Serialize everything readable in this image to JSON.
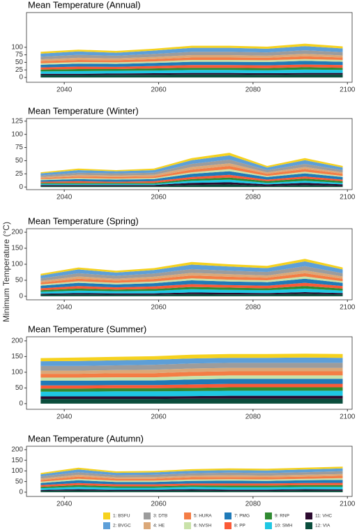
{
  "chart_data": [
    {
      "type": "area",
      "title": "Mean Temperature (Annual)",
      "x": [
        2035,
        2043,
        2051,
        2059,
        2067,
        2075,
        2083,
        2091,
        2099
      ],
      "xlim": [
        2032,
        2101
      ],
      "xticks": [
        2040,
        2060,
        2080,
        2100
      ],
      "ylim": [
        -16,
        215
      ],
      "yticks": [
        0,
        25,
        50,
        75,
        100
      ],
      "series": [
        {
          "name": "1: BSFU",
          "color": "#f6d21e",
          "values": [
            6,
            6,
            6,
            6,
            7,
            7,
            7,
            8,
            7
          ]
        },
        {
          "name": "2: BVGC",
          "color": "#5d9fd8",
          "values": [
            10,
            11,
            10,
            11,
            13,
            13,
            12,
            14,
            12
          ]
        },
        {
          "name": "3: DTB",
          "color": "#9c9c9c",
          "values": [
            9,
            10,
            9,
            10,
            11,
            11,
            11,
            12,
            11
          ]
        },
        {
          "name": "4: HE",
          "color": "#dba878",
          "values": [
            6,
            7,
            6,
            7,
            8,
            8,
            7,
            8,
            7
          ]
        },
        {
          "name": "5: HURA",
          "color": "#f47d45",
          "values": [
            7,
            7,
            7,
            8,
            8,
            8,
            8,
            9,
            8
          ]
        },
        {
          "name": "6: NVSH",
          "color": "#c9e2a9",
          "values": [
            5,
            5,
            5,
            5,
            6,
            6,
            6,
            6,
            6
          ]
        },
        {
          "name": "7: PMG",
          "color": "#1f7ab8",
          "values": [
            9,
            10,
            10,
            10,
            11,
            11,
            11,
            12,
            11
          ]
        },
        {
          "name": "8: PP",
          "color": "#fb5a37",
          "values": [
            7,
            8,
            7,
            8,
            9,
            9,
            9,
            9,
            9
          ]
        },
        {
          "name": "9: RNP",
          "color": "#2f8a31",
          "values": [
            6,
            7,
            6,
            7,
            7,
            7,
            7,
            8,
            7
          ]
        },
        {
          "name": "10: SMH",
          "color": "#1ec7e3",
          "values": [
            8,
            9,
            9,
            9,
            10,
            10,
            10,
            11,
            10
          ]
        },
        {
          "name": "11: VHC",
          "color": "#2b0a2f",
          "values": [
            4,
            4,
            4,
            5,
            5,
            5,
            5,
            5,
            5
          ]
        },
        {
          "name": "12: VIA",
          "color": "#0a4d3c",
          "values": [
            8,
            8,
            9,
            9,
            10,
            10,
            9,
            10,
            10
          ]
        }
      ]
    },
    {
      "type": "area",
      "title": "Mean Temperature (Winter)",
      "x": [
        2035,
        2043,
        2051,
        2059,
        2067,
        2075,
        2083,
        2091,
        2099
      ],
      "xlim": [
        2032,
        2101
      ],
      "xticks": [
        2040,
        2060,
        2080,
        2100
      ],
      "ylim": [
        -5,
        130
      ],
      "yticks": [
        0,
        25,
        50,
        75,
        100,
        125
      ],
      "series": [
        {
          "name": "1: BSFU",
          "color": "#f6d21e",
          "values": [
            2,
            3,
            2,
            3,
            4,
            5,
            3,
            4,
            3
          ]
        },
        {
          "name": "2: BVGC",
          "color": "#5d9fd8",
          "values": [
            4,
            5,
            4,
            5,
            7,
            8,
            5,
            7,
            5
          ]
        },
        {
          "name": "3: DTB",
          "color": "#9c9c9c",
          "values": [
            3,
            4,
            4,
            4,
            6,
            7,
            4,
            6,
            4
          ]
        },
        {
          "name": "4: HE",
          "color": "#dba878",
          "values": [
            2,
            3,
            3,
            3,
            5,
            5,
            3,
            4,
            3
          ]
        },
        {
          "name": "5: HURA",
          "color": "#f47d45",
          "values": [
            2,
            3,
            3,
            3,
            5,
            6,
            4,
            5,
            4
          ]
        },
        {
          "name": "6: NVSH",
          "color": "#c9e2a9",
          "values": [
            2,
            2,
            2,
            2,
            3,
            4,
            2,
            3,
            2
          ]
        },
        {
          "name": "7: PMG",
          "color": "#1f7ab8",
          "values": [
            3,
            4,
            4,
            4,
            6,
            7,
            5,
            6,
            5
          ]
        },
        {
          "name": "8: PP",
          "color": "#fb5a37",
          "values": [
            2,
            3,
            2,
            3,
            4,
            5,
            3,
            4,
            3
          ]
        },
        {
          "name": "9: RNP",
          "color": "#2f8a31",
          "values": [
            2,
            2,
            2,
            2,
            3,
            4,
            3,
            4,
            3
          ]
        },
        {
          "name": "10: SMH",
          "color": "#1ec7e3",
          "values": [
            2,
            2,
            2,
            2,
            4,
            5,
            3,
            4,
            3
          ]
        },
        {
          "name": "11: VHC",
          "color": "#2b0a2f",
          "values": [
            2,
            2,
            2,
            2,
            4,
            4,
            3,
            4,
            3
          ]
        },
        {
          "name": "12: VIA",
          "color": "#0a4d3c",
          "values": [
            2,
            2,
            2,
            2,
            4,
            5,
            2,
            4,
            2
          ]
        }
      ]
    },
    {
      "type": "area",
      "title": "Mean Temperature (Spring)",
      "ylabel": "Minimum Temperature (°C)",
      "x": [
        2035,
        2043,
        2051,
        2059,
        2067,
        2075,
        2083,
        2091,
        2099
      ],
      "xlim": [
        2032,
        2101
      ],
      "xticks": [
        2040,
        2060,
        2080,
        2100
      ],
      "ylim": [
        -11,
        211
      ],
      "yticks": [
        0,
        50,
        100,
        150,
        200
      ],
      "series": [
        {
          "name": "1: BSFU",
          "color": "#f6d21e",
          "values": [
            5,
            6,
            6,
            6,
            8,
            7,
            7,
            8,
            6
          ]
        },
        {
          "name": "2: BVGC",
          "color": "#5d9fd8",
          "values": [
            9,
            12,
            10,
            11,
            14,
            13,
            12,
            15,
            12
          ]
        },
        {
          "name": "3: DTB",
          "color": "#9c9c9c",
          "values": [
            8,
            10,
            9,
            10,
            12,
            11,
            11,
            13,
            10
          ]
        },
        {
          "name": "4: HE",
          "color": "#dba878",
          "values": [
            5,
            7,
            6,
            7,
            8,
            8,
            7,
            9,
            7
          ]
        },
        {
          "name": "5: HURA",
          "color": "#f47d45",
          "values": [
            6,
            8,
            7,
            8,
            9,
            9,
            8,
            10,
            8
          ]
        },
        {
          "name": "6: NVSH",
          "color": "#c9e2a9",
          "values": [
            4,
            5,
            5,
            5,
            6,
            6,
            6,
            7,
            5
          ]
        },
        {
          "name": "7: PMG",
          "color": "#1f7ab8",
          "values": [
            8,
            10,
            9,
            10,
            12,
            11,
            11,
            13,
            10
          ]
        },
        {
          "name": "8: PP",
          "color": "#fb5a37",
          "values": [
            6,
            8,
            7,
            8,
            9,
            8,
            8,
            10,
            8
          ]
        },
        {
          "name": "9: RNP",
          "color": "#2f8a31",
          "values": [
            5,
            6,
            5,
            6,
            7,
            7,
            6,
            8,
            6
          ]
        },
        {
          "name": "10: SMH",
          "color": "#1ec7e3",
          "values": [
            6,
            8,
            7,
            8,
            10,
            9,
            9,
            11,
            8
          ]
        },
        {
          "name": "11: VHC",
          "color": "#2b0a2f",
          "values": [
            3,
            4,
            4,
            4,
            5,
            5,
            4,
            5,
            4
          ]
        },
        {
          "name": "12: VIA",
          "color": "#0a4d3c",
          "values": [
            5,
            6,
            5,
            5,
            7,
            6,
            6,
            8,
            6
          ]
        }
      ]
    },
    {
      "type": "area",
      "title": "Mean Temperature (Summer)",
      "x": [
        2035,
        2043,
        2051,
        2059,
        2067,
        2075,
        2083,
        2091,
        2099
      ],
      "xlim": [
        2032,
        2101
      ],
      "xticks": [
        2040,
        2060,
        2080,
        2100
      ],
      "ylim": [
        -18,
        213
      ],
      "yticks": [
        0,
        50,
        100,
        150,
        200
      ],
      "series": [
        {
          "name": "1: BSFU",
          "color": "#f6d21e",
          "values": [
            10,
            11,
            11,
            11,
            12,
            12,
            12,
            12,
            12
          ]
        },
        {
          "name": "2: BVGC",
          "color": "#5d9fd8",
          "values": [
            15,
            16,
            16,
            16,
            16,
            16,
            16,
            17,
            16
          ]
        },
        {
          "name": "3: DTB",
          "color": "#9c9c9c",
          "values": [
            15,
            15,
            15,
            16,
            16,
            16,
            16,
            16,
            16
          ]
        },
        {
          "name": "4: HE",
          "color": "#dba878",
          "values": [
            10,
            10,
            10,
            11,
            11,
            11,
            11,
            11,
            11
          ]
        },
        {
          "name": "5: HURA",
          "color": "#f47d45",
          "values": [
            12,
            12,
            13,
            13,
            13,
            13,
            13,
            13,
            13
          ]
        },
        {
          "name": "6: NVSH",
          "color": "#c9e2a9",
          "values": [
            10,
            10,
            10,
            10,
            11,
            11,
            11,
            11,
            11
          ]
        },
        {
          "name": "7: PMG",
          "color": "#1f7ab8",
          "values": [
            15,
            15,
            15,
            15,
            16,
            16,
            16,
            16,
            16
          ]
        },
        {
          "name": "8: PP",
          "color": "#fb5a37",
          "values": [
            10,
            10,
            10,
            10,
            11,
            11,
            11,
            11,
            11
          ]
        },
        {
          "name": "9: RNP",
          "color": "#2f8a31",
          "values": [
            10,
            10,
            10,
            10,
            10,
            11,
            11,
            11,
            11
          ]
        },
        {
          "name": "10: SMH",
          "color": "#1ec7e3",
          "values": [
            15,
            15,
            16,
            16,
            16,
            16,
            16,
            16,
            16
          ]
        },
        {
          "name": "11: VHC",
          "color": "#2b0a2f",
          "values": [
            8,
            8,
            8,
            8,
            8,
            9,
            9,
            9,
            9
          ]
        },
        {
          "name": "12: VIA",
          "color": "#0a4d3c",
          "values": [
            15,
            15,
            15,
            15,
            16,
            16,
            16,
            16,
            16
          ]
        }
      ]
    },
    {
      "type": "area",
      "title": "Mean Temperature (Autumn)",
      "x": [
        2035,
        2043,
        2051,
        2059,
        2067,
        2075,
        2083,
        2091,
        2099
      ],
      "xlim": [
        2032,
        2101
      ],
      "xticks": [
        2040,
        2060,
        2080,
        2100
      ],
      "ylim": [
        -20,
        216
      ],
      "yticks": [
        0,
        50,
        100,
        150,
        200
      ],
      "series": [
        {
          "name": "1: BSFU",
          "color": "#f6d21e",
          "values": [
            6,
            8,
            7,
            7,
            7,
            8,
            8,
            8,
            8
          ]
        },
        {
          "name": "2: BVGC",
          "color": "#5d9fd8",
          "values": [
            10,
            13,
            11,
            11,
            12,
            12,
            12,
            13,
            13
          ]
        },
        {
          "name": "3: DTB",
          "color": "#9c9c9c",
          "values": [
            10,
            12,
            10,
            11,
            11,
            12,
            12,
            12,
            13
          ]
        },
        {
          "name": "4: HE",
          "color": "#dba878",
          "values": [
            7,
            9,
            7,
            8,
            8,
            9,
            8,
            9,
            9
          ]
        },
        {
          "name": "5: HURA",
          "color": "#f47d45",
          "values": [
            8,
            10,
            9,
            9,
            10,
            10,
            10,
            10,
            11
          ]
        },
        {
          "name": "6: NVSH",
          "color": "#c9e2a9",
          "values": [
            6,
            7,
            6,
            6,
            7,
            7,
            7,
            7,
            8
          ]
        },
        {
          "name": "7: PMG",
          "color": "#1f7ab8",
          "values": [
            10,
            13,
            11,
            11,
            12,
            13,
            12,
            13,
            14
          ]
        },
        {
          "name": "8: PP",
          "color": "#fb5a37",
          "values": [
            8,
            10,
            9,
            9,
            9,
            10,
            10,
            10,
            11
          ]
        },
        {
          "name": "9: RNP",
          "color": "#2f8a31",
          "values": [
            6,
            8,
            7,
            7,
            7,
            8,
            8,
            8,
            8
          ]
        },
        {
          "name": "10: SMH",
          "color": "#1ec7e3",
          "values": [
            9,
            11,
            10,
            10,
            11,
            11,
            11,
            11,
            12
          ]
        },
        {
          "name": "11: VHC",
          "color": "#2b0a2f",
          "values": [
            4,
            6,
            5,
            5,
            6,
            6,
            6,
            6,
            6
          ]
        },
        {
          "name": "12: VIA",
          "color": "#0a4d3c",
          "values": [
            6,
            8,
            6,
            6,
            8,
            6,
            6,
            8,
            7
          ]
        }
      ]
    }
  ]
}
